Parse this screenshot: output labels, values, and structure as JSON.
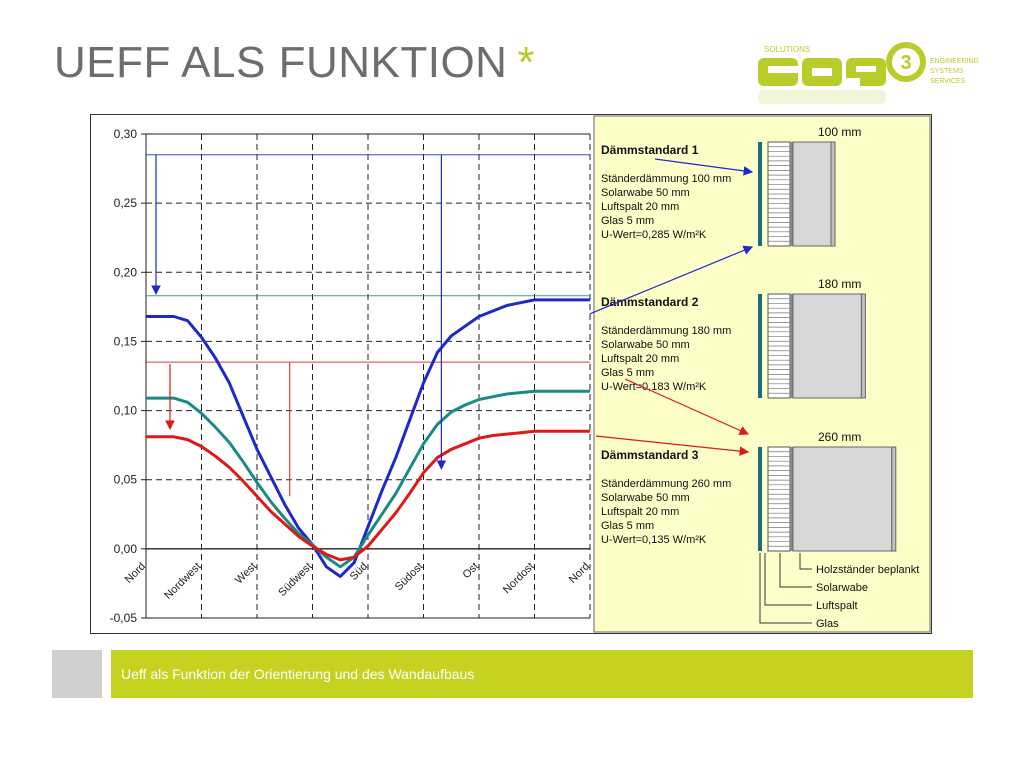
{
  "slide": {
    "title": "UEFF ALS FUNKTION",
    "title_star": "*",
    "footer_text": "Ueff als Funktion der Orientierung und des Wandaufbaus"
  },
  "logo": {
    "solutions": "SOLUTIONS",
    "word": "GAP",
    "number": "3",
    "line1": "ENGINEERING",
    "line2": "SYSTEMS",
    "line3": "SERVICES",
    "color": "#b9cc2a"
  },
  "chart_data": {
    "type": "line",
    "categories": [
      "Nord",
      "Nordwest",
      "West",
      "Südwest",
      "Süd",
      "Südost",
      "Ost",
      "Nordost",
      "Nord"
    ],
    "ylim": [
      -0.05,
      0.3
    ],
    "yticks": [
      "0,30",
      "0,25",
      "0,20",
      "0,15",
      "0,10",
      "0,05",
      "0,00",
      "-0,05"
    ],
    "grid": true,
    "x": [
      0,
      0.25,
      0.5,
      0.75,
      1,
      1.25,
      1.5,
      1.75,
      2,
      2.25,
      2.5,
      2.75,
      3,
      3.25,
      3.5,
      3.75,
      4,
      4.25,
      4.5,
      4.75,
      5,
      5.25,
      5.5,
      5.75,
      6,
      6.25,
      6.5,
      6.75,
      7,
      7.25,
      7.5,
      7.75,
      8
    ],
    "series": [
      {
        "color": "#1f28c8",
        "reference_u": 0.285,
        "values": [
          0.168,
          0.168,
          0.168,
          0.165,
          0.153,
          0.138,
          0.12,
          0.096,
          0.072,
          0.052,
          0.032,
          0.015,
          0.003,
          -0.013,
          -0.02,
          -0.01,
          0.016,
          0.042,
          0.066,
          0.093,
          0.12,
          0.142,
          0.154,
          0.161,
          0.168,
          0.172,
          0.176,
          0.178,
          0.18,
          0.18,
          0.18,
          0.18,
          0.18
        ]
      },
      {
        "color": "#198a84",
        "reference_u": 0.183,
        "values": [
          0.109,
          0.109,
          0.109,
          0.106,
          0.098,
          0.088,
          0.077,
          0.063,
          0.048,
          0.034,
          0.022,
          0.011,
          0.003,
          -0.006,
          -0.013,
          -0.006,
          0.01,
          0.025,
          0.04,
          0.058,
          0.076,
          0.09,
          0.099,
          0.104,
          0.108,
          0.11,
          0.112,
          0.113,
          0.114,
          0.114,
          0.114,
          0.114,
          0.114
        ]
      },
      {
        "color": "#e01818",
        "reference_u": 0.135,
        "values": [
          0.081,
          0.081,
          0.081,
          0.079,
          0.074,
          0.067,
          0.059,
          0.049,
          0.038,
          0.027,
          0.018,
          0.009,
          0.002,
          -0.004,
          -0.008,
          -0.006,
          0.002,
          0.014,
          0.026,
          0.04,
          0.055,
          0.066,
          0.072,
          0.076,
          0.08,
          0.082,
          0.083,
          0.084,
          0.085,
          0.085,
          0.085,
          0.085,
          0.085
        ]
      }
    ]
  },
  "standards": [
    {
      "heading": "Dämmstandard 1",
      "lines": [
        "Ständerdämmung 100 mm",
        "Solarwabe 50 mm",
        "Luftspalt 20 mm",
        "Glas 5 mm",
        "U-Wert=0,285 W/m²K"
      ],
      "thickness_label": "100 mm",
      "insulation_mm": 100
    },
    {
      "heading": "Dämmstandard 2",
      "lines": [
        "Ständerdämmung 180 mm",
        "Solarwabe 50 mm",
        "Luftspalt 20 mm",
        "Glas 5 mm",
        "U-Wert=0,183 W/m²K"
      ],
      "thickness_label": "180 mm",
      "insulation_mm": 180
    },
    {
      "heading": "Dämmstandard 3",
      "lines": [
        "Ständerdämmung 260 mm",
        "Solarwabe 50 mm",
        "Luftspalt 20 mm",
        "Glas 5 mm",
        "U-Wert=0,135 W/m²K"
      ],
      "thickness_label": "260 mm",
      "insulation_mm": 260
    }
  ],
  "layer_legend": [
    "Holzständer beplankt",
    "Solarwabe",
    "Luftspalt",
    "Glas"
  ]
}
